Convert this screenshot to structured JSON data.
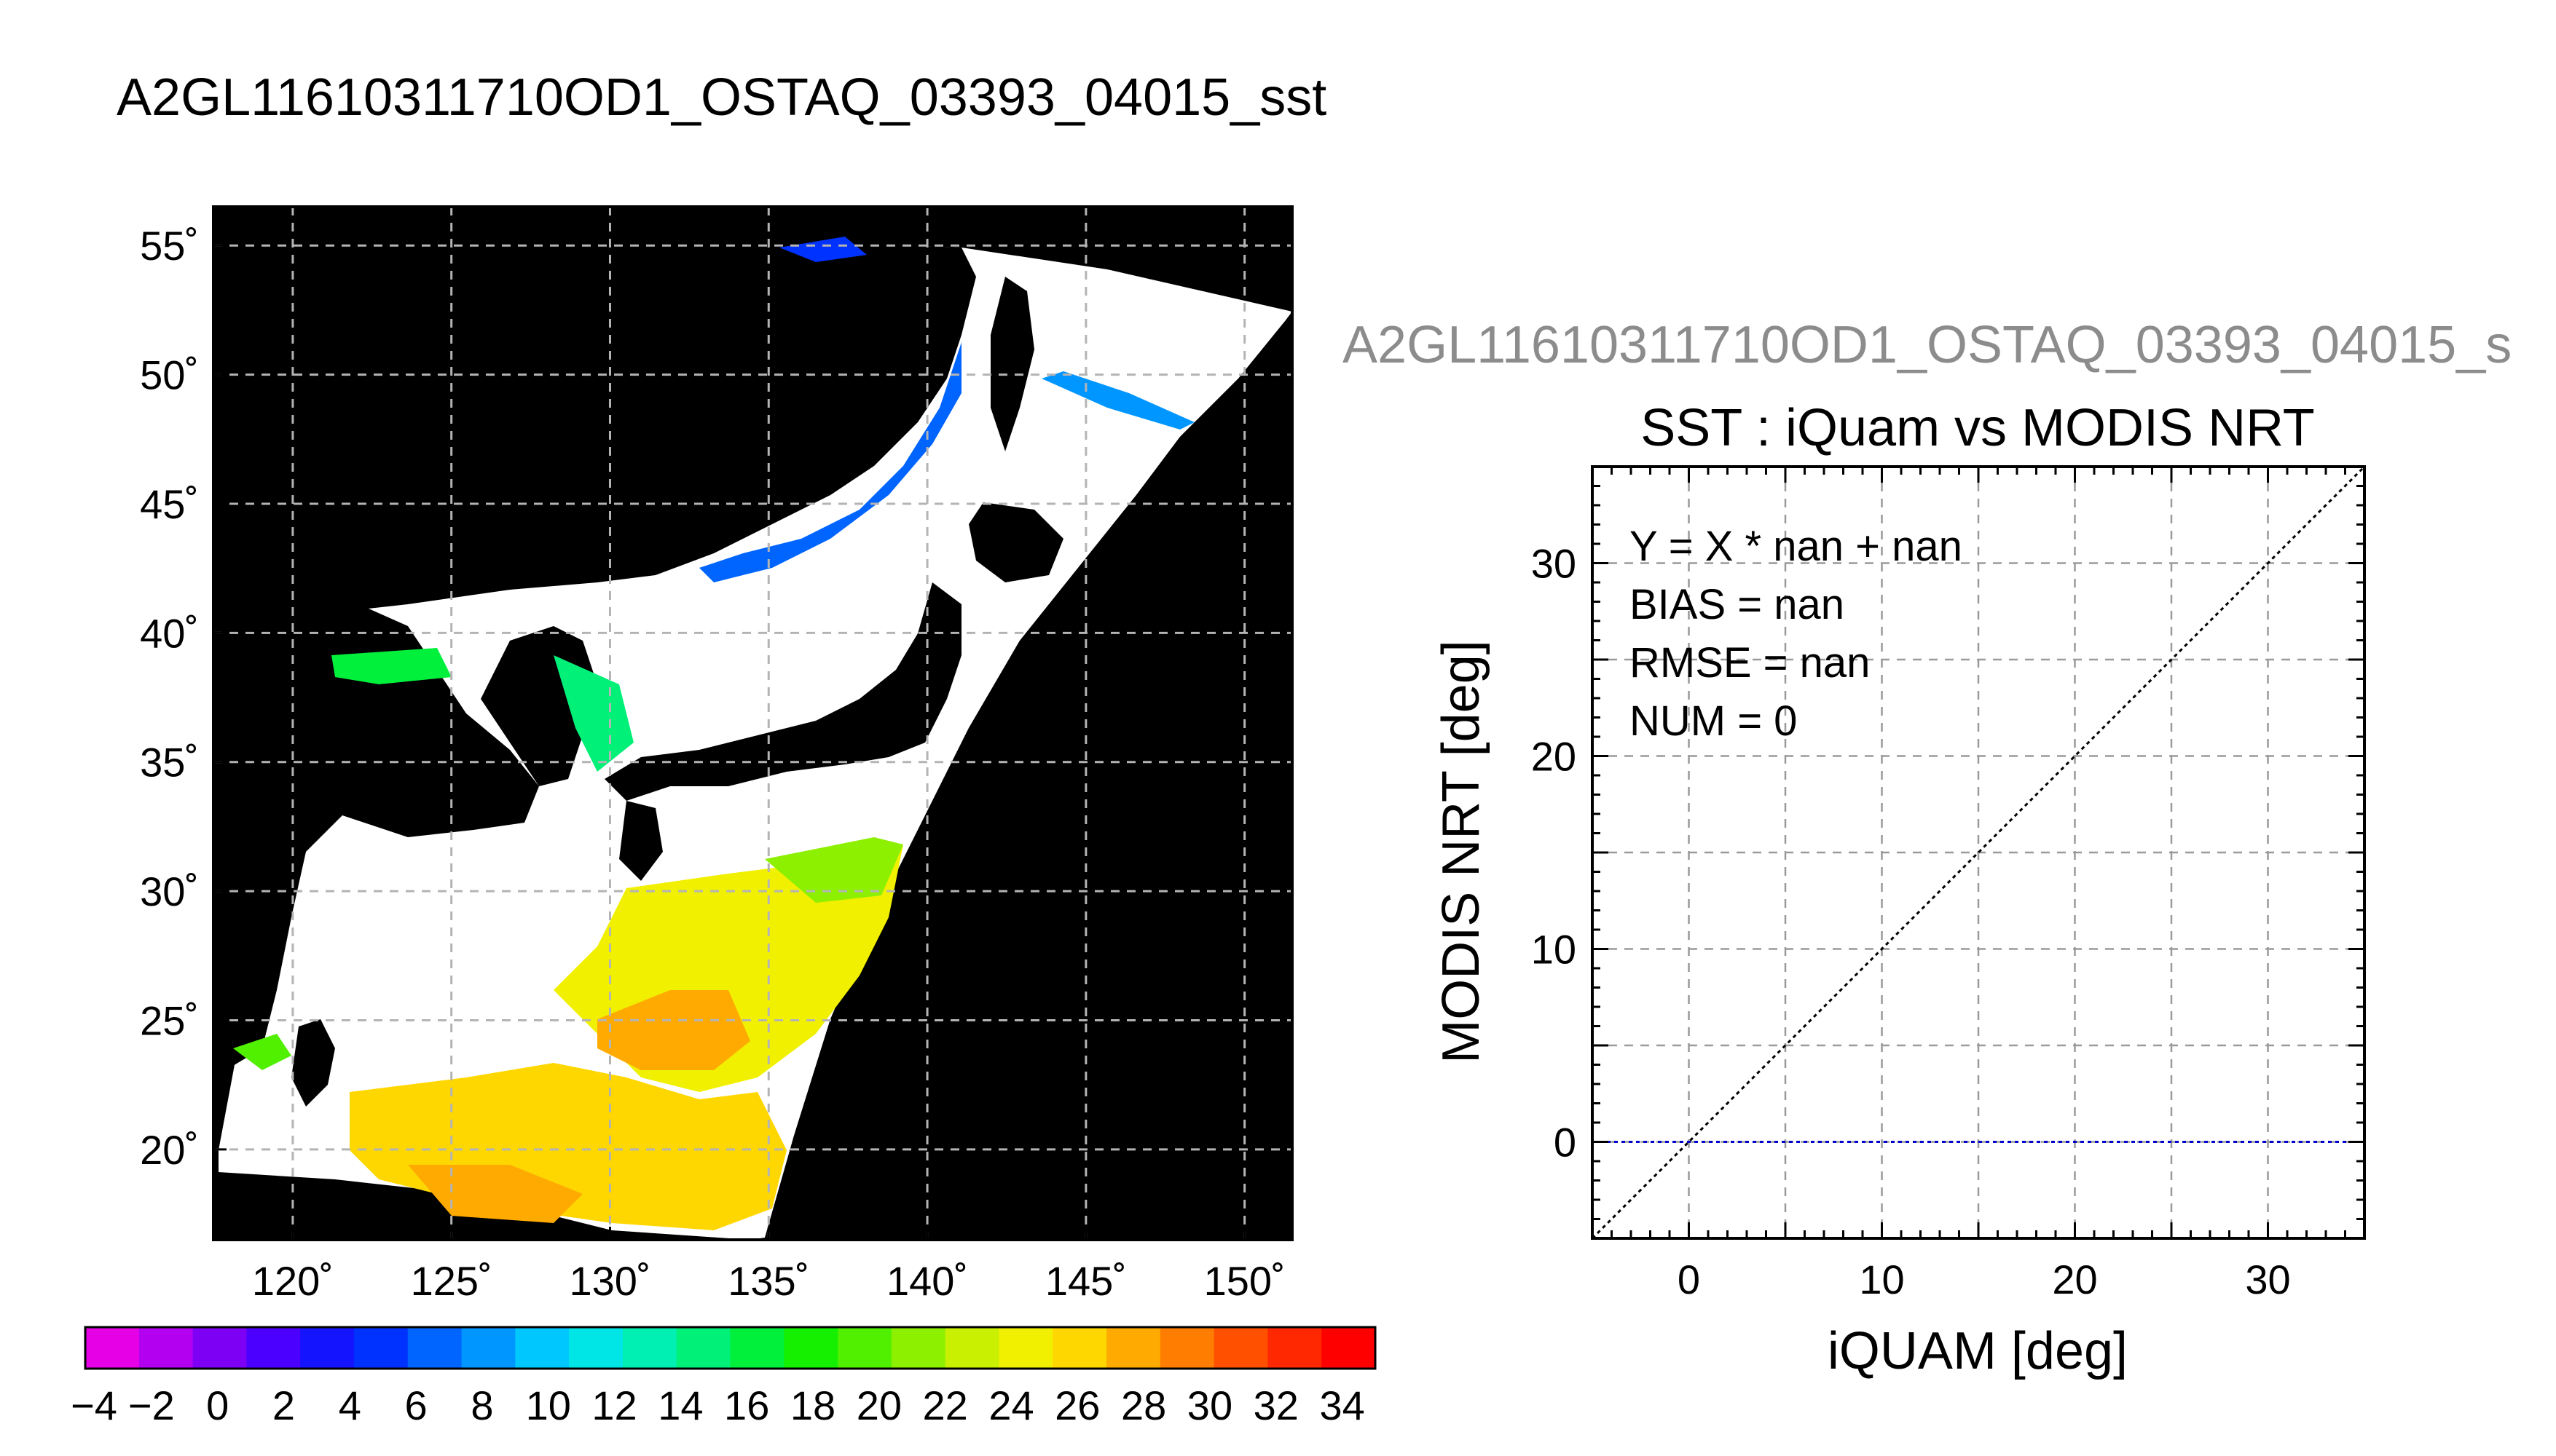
{
  "main_title": "A2GL11610311710OD1_OSTAQ_03393_04015_sst",
  "map": {
    "lat_ticks": [
      "55˚",
      "50˚",
      "45˚",
      "40˚",
      "35˚",
      "30˚",
      "25˚",
      "20˚"
    ],
    "lon_ticks": [
      "120˚",
      "125˚",
      "130˚",
      "135˚",
      "140˚",
      "145˚",
      "150˚"
    ],
    "colorbar_labels": [
      "−4",
      "−2",
      "0",
      "2",
      "4",
      "6",
      "8",
      "10",
      "12",
      "14",
      "16",
      "18",
      "20",
      "22",
      "24",
      "26",
      "28",
      "30",
      "32",
      "34"
    ],
    "colorbar_colors": [
      "#e600e6",
      "#b400f0",
      "#7d00f5",
      "#4b00ff",
      "#1414ff",
      "#0032ff",
      "#0064ff",
      "#0096ff",
      "#00c8ff",
      "#00e6e6",
      "#00f0b4",
      "#00f078",
      "#00f03c",
      "#14f000",
      "#50f000",
      "#8cf000",
      "#c8f000",
      "#f0f000",
      "#ffd700",
      "#ffaa00",
      "#ff7d00",
      "#ff5000",
      "#ff2800",
      "#ff0000"
    ]
  },
  "scatter": {
    "subtitle": "A2GL11610311710OD1_OSTAQ_03393_04015_s",
    "title": "SST : iQuam vs MODIS NRT",
    "stats": [
      "Y = X * nan + nan",
      "BIAS = nan",
      "RMSE = nan",
      "NUM = 0"
    ],
    "x_tick_labels": [
      "0",
      "10",
      "20",
      "30"
    ],
    "y_tick_labels": [
      "0",
      "10",
      "20",
      "30"
    ],
    "xlabel": "iQUAM [deg]",
    "ylabel": "MODIS NRT [deg]"
  },
  "chart_data": [
    {
      "type": "heatmap",
      "title": "A2GL11610311710OD1_OSTAQ_03393_04015_sst",
      "xlim": [
        117.5,
        151.5
      ],
      "ylim": [
        16.5,
        56.5
      ],
      "x_ticks": [
        120,
        125,
        130,
        135,
        140,
        145,
        150
      ],
      "y_ticks": [
        55,
        50,
        45,
        40,
        35,
        30,
        25,
        20
      ],
      "colorbar_range": [
        -4,
        35
      ],
      "grid": true
    },
    {
      "type": "scatter",
      "title": "SST : iQuam vs MODIS NRT",
      "xlabel": "iQUAM [deg]",
      "ylabel": "MODIS NRT [deg]",
      "xlim": [
        -5,
        35
      ],
      "ylim": [
        -5,
        35
      ],
      "x_ticks": [
        0,
        10,
        20,
        30
      ],
      "y_ticks": [
        0,
        10,
        20,
        30
      ],
      "points": [],
      "reference_lines": [
        {
          "kind": "identity",
          "from": [
            -5,
            -5
          ],
          "to": [
            35,
            35
          ]
        },
        {
          "kind": "horizontal",
          "y": 0
        }
      ],
      "grid": true
    }
  ]
}
